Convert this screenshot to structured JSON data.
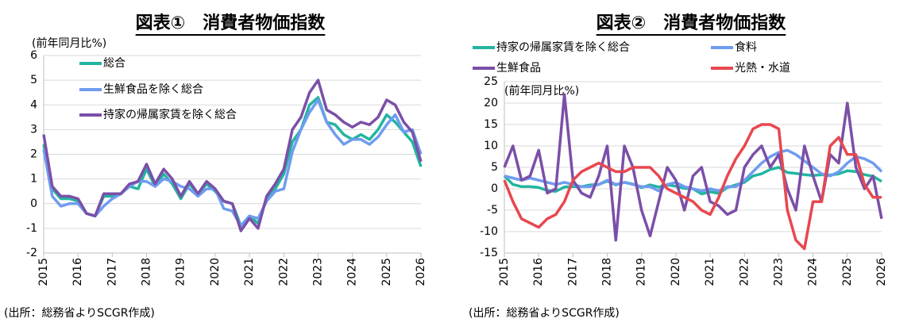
{
  "chart_data": [
    {
      "type": "line",
      "title": "図表①　消費者物価指数",
      "y_label": "(前年同月比%)",
      "source": "(出所：総務省よりSCGR作成)",
      "x": [
        2015,
        2015.25,
        2015.5,
        2015.75,
        2016,
        2016.25,
        2016.5,
        2016.75,
        2017,
        2017.25,
        2017.5,
        2017.75,
        2018,
        2018.25,
        2018.5,
        2018.75,
        2019,
        2019.25,
        2019.5,
        2019.75,
        2020,
        2020.25,
        2020.5,
        2020.75,
        2021,
        2021.25,
        2021.5,
        2021.75,
        2022,
        2022.25,
        2022.5,
        2022.75,
        2023,
        2023.25,
        2023.5,
        2023.75,
        2024,
        2024.25,
        2024.5,
        2024.75,
        2025,
        2025.25,
        2025.5,
        2025.75,
        2026
      ],
      "xlim": [
        2015,
        2026
      ],
      "xticks": [
        2015,
        2016,
        2017,
        2018,
        2019,
        2020,
        2021,
        2022,
        2023,
        2024,
        2025,
        2026
      ],
      "ylim": [
        -2,
        6
      ],
      "yticks": [
        -2,
        -1,
        0,
        1,
        2,
        3,
        4,
        5,
        6
      ],
      "grid": true,
      "series": [
        {
          "name": "総合",
          "color": "#22b5a0",
          "values": [
            2.4,
            0.6,
            0.2,
            0.2,
            0.1,
            -0.4,
            -0.5,
            0.3,
            0.3,
            0.4,
            0.7,
            0.6,
            1.4,
            0.7,
            1.2,
            0.8,
            0.2,
            0.8,
            0.4,
            0.8,
            0.5,
            0.1,
            0.0,
            -0.9,
            -0.5,
            -0.8,
            0.2,
            0.6,
            1.2,
            2.5,
            3.0,
            4.0,
            4.3,
            3.3,
            3.2,
            2.8,
            2.6,
            2.8,
            2.6,
            3.0,
            3.6,
            3.3,
            2.9,
            2.5,
            1.5
          ]
        },
        {
          "name": "生鮮食品を除く総合",
          "color": "#6f9cf0",
          "values": [
            2.2,
            0.3,
            -0.1,
            0.0,
            0.0,
            -0.4,
            -0.5,
            -0.1,
            0.2,
            0.4,
            0.7,
            0.9,
            0.9,
            0.7,
            1.0,
            0.9,
            0.7,
            0.6,
            0.3,
            0.6,
            0.6,
            -0.2,
            -0.3,
            -0.9,
            -0.5,
            -0.6,
            0.1,
            0.5,
            0.6,
            2.1,
            3.0,
            3.7,
            4.2,
            3.3,
            2.8,
            2.4,
            2.6,
            2.6,
            2.4,
            2.7,
            3.2,
            3.6,
            2.9,
            3.0,
            2.0
          ]
        },
        {
          "name": "持家の帰属家賃を除く総合",
          "color": "#7b4fa8",
          "values": [
            2.8,
            0.7,
            0.3,
            0.3,
            0.2,
            -0.4,
            -0.5,
            0.4,
            0.4,
            0.4,
            0.8,
            0.9,
            1.6,
            0.8,
            1.4,
            1.0,
            0.3,
            0.9,
            0.4,
            0.9,
            0.6,
            0.1,
            0.0,
            -1.1,
            -0.6,
            -1.0,
            0.3,
            0.8,
            1.4,
            3.0,
            3.5,
            4.5,
            5.0,
            3.8,
            3.6,
            3.3,
            3.1,
            3.3,
            3.2,
            3.5,
            4.2,
            4.0,
            3.3,
            2.9,
            1.7
          ]
        }
      ]
    },
    {
      "type": "line",
      "title": "図表②　消費者物価指数",
      "y_label": "(前年同月比%)",
      "source": "(出所：総務省よりSCGR作成)",
      "x": [
        2015,
        2015.25,
        2015.5,
        2015.75,
        2016,
        2016.25,
        2016.5,
        2016.75,
        2017,
        2017.25,
        2017.5,
        2017.75,
        2018,
        2018.25,
        2018.5,
        2018.75,
        2019,
        2019.25,
        2019.5,
        2019.75,
        2020,
        2020.25,
        2020.5,
        2020.75,
        2021,
        2021.25,
        2021.5,
        2021.75,
        2022,
        2022.25,
        2022.5,
        2022.75,
        2023,
        2023.25,
        2023.5,
        2023.75,
        2024,
        2024.25,
        2024.5,
        2024.75,
        2025,
        2025.25,
        2025.5,
        2025.75,
        2026
      ],
      "xlim": [
        2015,
        2026
      ],
      "xticks": [
        2015,
        2016,
        2017,
        2018,
        2019,
        2020,
        2021,
        2022,
        2023,
        2024,
        2025,
        2026
      ],
      "ylim": [
        -15,
        25
      ],
      "yticks": [
        -15,
        -10,
        -5,
        0,
        5,
        10,
        15,
        20,
        25
      ],
      "grid": true,
      "series": [
        {
          "name": "持家の帰属家賃を除く総合",
          "color": "#22b5a0",
          "values": [
            3.0,
            1.0,
            0.5,
            0.5,
            0.3,
            -0.4,
            -0.6,
            0.4,
            0.5,
            0.5,
            0.9,
            1.0,
            1.8,
            0.9,
            1.5,
            1.1,
            0.3,
            0.9,
            0.4,
            0.9,
            0.6,
            0.1,
            0.0,
            -1.2,
            -0.7,
            -1.1,
            0.3,
            0.9,
            1.5,
            3.0,
            3.5,
            4.5,
            5.0,
            3.8,
            3.6,
            3.3,
            3.1,
            3.3,
            3.2,
            3.5,
            4.2,
            4.0,
            3.3,
            2.9,
            1.7
          ]
        },
        {
          "name": "食料",
          "color": "#6f9cf0",
          "values": [
            3.0,
            2.5,
            2.0,
            2.5,
            2.0,
            1.5,
            1.0,
            1.5,
            1.0,
            0.5,
            0.5,
            1.0,
            2.0,
            1.0,
            1.5,
            1.0,
            0.5,
            0.5,
            -0.5,
            1.0,
            1.5,
            0.5,
            0.0,
            -0.5,
            0.0,
            -0.5,
            0.5,
            0.5,
            2.0,
            4.0,
            6.0,
            7.5,
            8.5,
            9.0,
            8.0,
            6.5,
            5.0,
            3.5,
            3.0,
            4.0,
            6.0,
            7.5,
            7.0,
            6.0,
            4.0
          ]
        },
        {
          "name": "生鮮食品",
          "color": "#7b4fa8",
          "values": [
            5,
            10,
            2,
            3,
            9,
            -1,
            0,
            22,
            2,
            -1,
            -2,
            3,
            10,
            -12,
            10,
            5,
            -5,
            -11,
            -3,
            5,
            2,
            -5,
            3,
            5,
            -3,
            -4,
            -6,
            -5,
            5,
            8,
            10,
            5,
            8,
            0,
            -5,
            10,
            3,
            -3,
            8,
            6,
            20,
            5,
            0,
            3,
            -7
          ]
        },
        {
          "name": "光熱・水道",
          "color": "#e8474f",
          "values": [
            2,
            -3,
            -7,
            -8,
            -9,
            -7,
            -6,
            -3,
            2,
            4,
            5,
            6,
            5,
            4,
            4,
            5,
            5,
            5,
            3,
            0,
            -1,
            -2,
            -3,
            -5,
            -6,
            -2,
            3,
            7,
            10,
            14,
            15,
            15,
            14,
            -5,
            -12,
            -14,
            -3,
            -3,
            10,
            12,
            8,
            8,
            1,
            -2,
            -2
          ]
        }
      ]
    }
  ]
}
